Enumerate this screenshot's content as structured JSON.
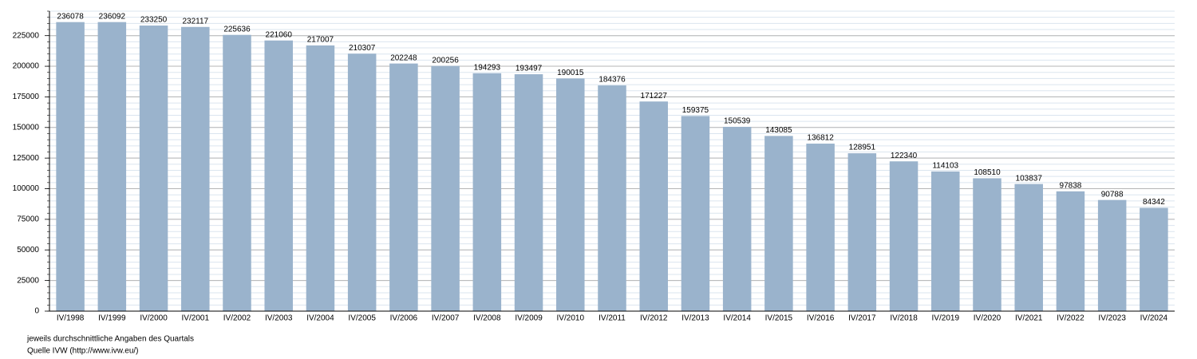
{
  "chart_data": {
    "type": "bar",
    "categories": [
      "IV/1998",
      "IV/1999",
      "IV/2000",
      "IV/2001",
      "IV/2002",
      "IV/2003",
      "IV/2004",
      "IV/2005",
      "IV/2006",
      "IV/2007",
      "IV/2008",
      "IV/2009",
      "IV/2010",
      "IV/2011",
      "IV/2012",
      "IV/2013",
      "IV/2014",
      "IV/2015",
      "IV/2016",
      "IV/2017",
      "IV/2018",
      "IV/2019",
      "IV/2020",
      "IV/2021",
      "IV/2022",
      "IV/2023",
      "IV/2024"
    ],
    "values": [
      236078,
      236092,
      233250,
      232117,
      225636,
      221060,
      217007,
      210307,
      202248,
      200256,
      194293,
      193497,
      190015,
      184376,
      171227,
      159375,
      150539,
      143085,
      136812,
      128951,
      122340,
      114103,
      108510,
      103837,
      97838,
      90788,
      84342
    ],
    "color": "#9ab3cc",
    "ylim": [
      0,
      245000
    ],
    "yticks": [
      0,
      25000,
      50000,
      75000,
      100000,
      125000,
      150000,
      175000,
      200000,
      225000
    ],
    "minor_ytick_step": 5000,
    "grid": true,
    "notes": [
      "jeweils durchschnittliche Angaben des Quartals",
      "Quelle IVW (http://www.ivw.eu/)"
    ]
  }
}
